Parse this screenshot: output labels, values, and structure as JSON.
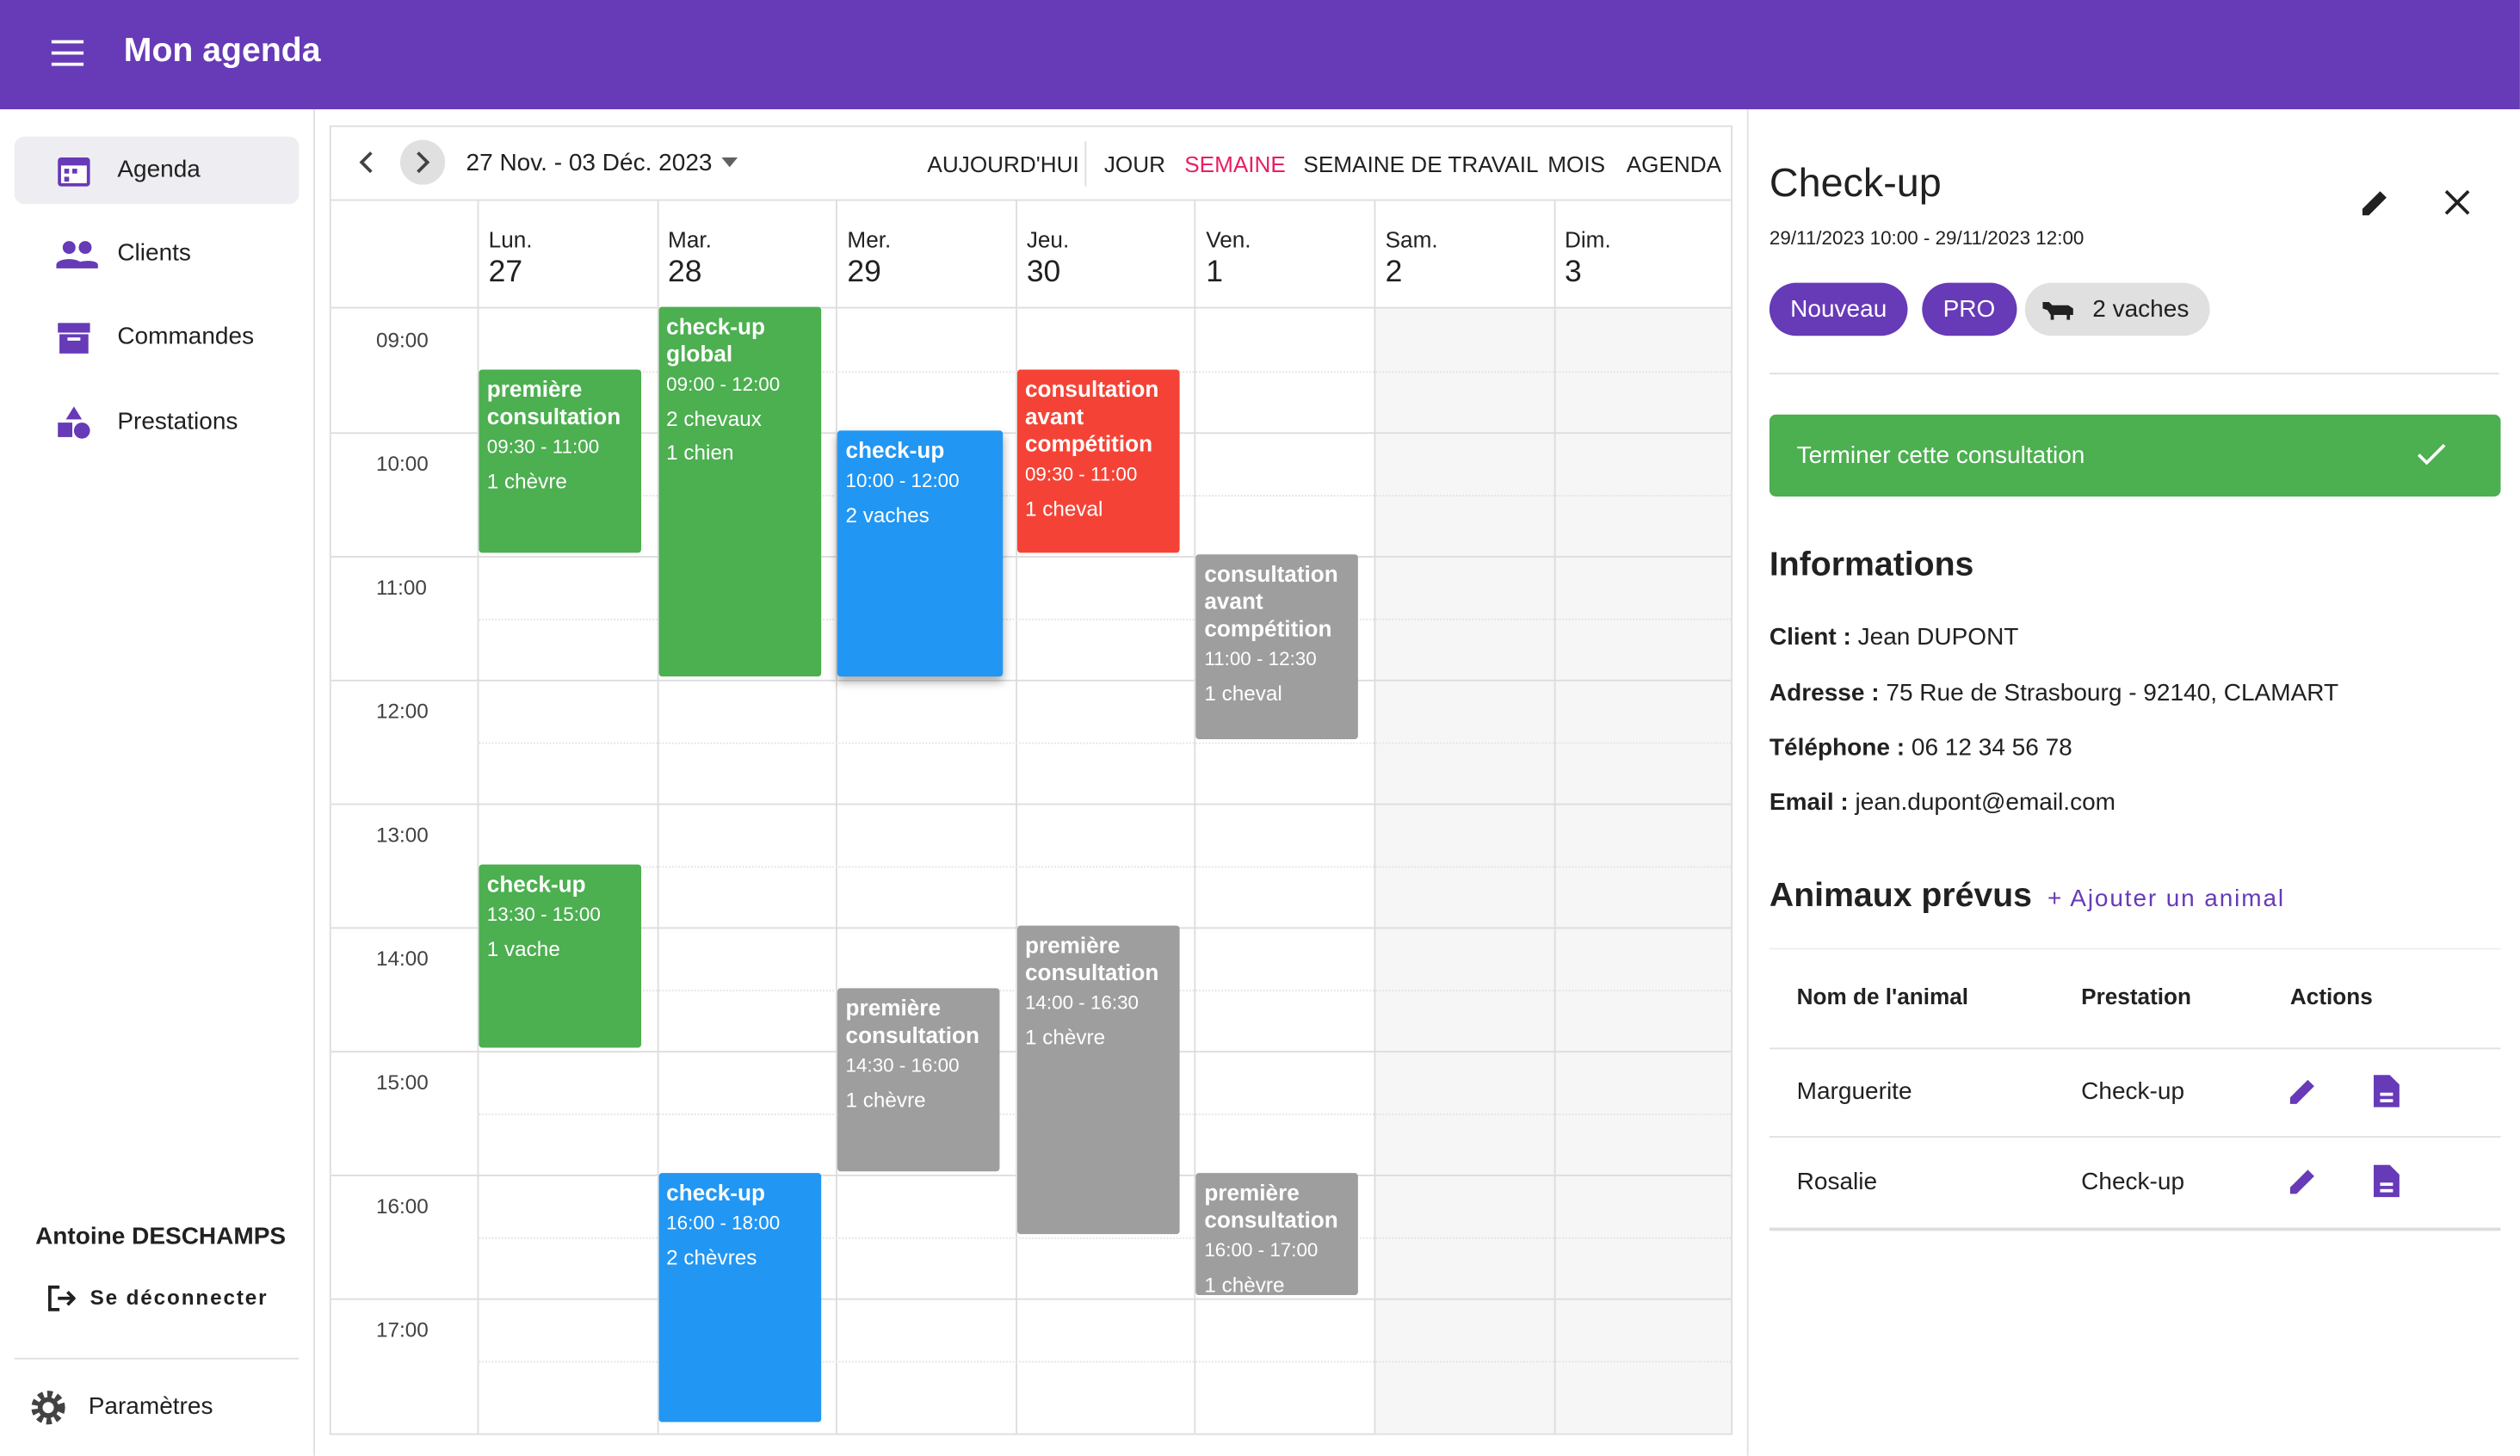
{
  "app_bar": {
    "title": "Mon agenda"
  },
  "sidebar": {
    "nav": [
      "Agenda",
      "Clients",
      "Commandes",
      "Prestations"
    ],
    "user": "Antoine DESCHAMPS",
    "logout": "Se déconnecter",
    "settings": "Paramètres"
  },
  "calendar": {
    "range": "27 Nov. - 03 Déc. 2023",
    "views": [
      "AUJOURD'HUI",
      "JOUR",
      "SEMAINE",
      "SEMAINE DE TRAVAIL",
      "MOIS",
      "AGENDA"
    ],
    "days": [
      {
        "name": "Lun.",
        "date": "27"
      },
      {
        "name": "Mar.",
        "date": "28"
      },
      {
        "name": "Mer.",
        "date": "29"
      },
      {
        "name": "Jeu.",
        "date": "30"
      },
      {
        "name": "Ven.",
        "date": "1"
      },
      {
        "name": "Sam.",
        "date": "2"
      },
      {
        "name": "Dim.",
        "date": "3"
      }
    ],
    "hours": [
      "09:00",
      "10:00",
      "11:00",
      "12:00",
      "13:00",
      "14:00",
      "15:00",
      "16:00",
      "17:00"
    ],
    "events": [
      {
        "title": "première consultation",
        "time": "09:30 - 11:00",
        "detail": "1 chèvre"
      },
      {
        "title": "check-up global",
        "time": "09:00 - 12:00",
        "detail": "2 chevaux",
        "detail2": "1 chien"
      },
      {
        "title": "check-up",
        "time": "10:00 - 12:00",
        "detail": "2 vaches"
      },
      {
        "title": "consultation avant compétition",
        "time": "09:30 - 11:00",
        "detail": "1 cheval"
      },
      {
        "title": "consultation avant compétition",
        "time": "11:00 - 12:30",
        "detail": "1 cheval"
      },
      {
        "title": "check-up",
        "time": "13:30 - 15:00",
        "detail": "1 vache"
      },
      {
        "title": "première consultation",
        "time": "14:30 - 16:00",
        "detail": "1 chèvre"
      },
      {
        "title": "première consultation",
        "time": "14:00 - 16:30",
        "detail": "1 chèvre"
      },
      {
        "title": "check-up",
        "time": "16:00 - 18:00",
        "detail": "2 chèvres"
      },
      {
        "title": "première consultation",
        "time": "16:00 - 17:00",
        "detail": "1 chèvre"
      }
    ]
  },
  "details": {
    "title": "Check-up",
    "datetime": "29/11/2023 10:00 - 29/11/2023 12:00",
    "chips": [
      "Nouveau",
      "PRO",
      "2 vaches"
    ],
    "action": "Terminer cette consultation",
    "info_heading": "Informations",
    "fields": [
      {
        "label": "Client :",
        "value": "Jean DUPONT"
      },
      {
        "label": "Adresse :",
        "value": "75 Rue de Strasbourg - 92140, CLAMART"
      },
      {
        "label": "Téléphone :",
        "value": "06 12 34 56 78"
      },
      {
        "label": "Email :",
        "value": "jean.dupont@email.com"
      }
    ],
    "animals_heading": "Animaux prévus",
    "add_animal": "+ Ajouter un animal",
    "table": {
      "columns": [
        "Nom de l'animal",
        "Prestation",
        "Actions"
      ],
      "rows": [
        [
          "Marguerite",
          "Check-up"
        ],
        [
          "Rosalie",
          "Check-up"
        ]
      ]
    }
  }
}
